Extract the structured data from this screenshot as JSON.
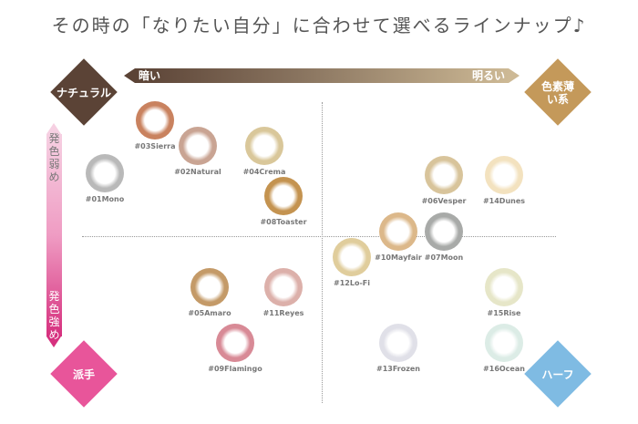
{
  "title": "その時の「なりたい自分」に合わせて選べるラインナップ♪",
  "axes": {
    "dark": "暗い",
    "bright": "明るい",
    "weak": "発色弱め",
    "strong": "発色強め"
  },
  "quadrants": {
    "top_left": {
      "label": "ナチュラル",
      "color": "#5b4336"
    },
    "top_right": {
      "label": "色素薄い系",
      "color": "#c4995a"
    },
    "bottom_left": {
      "label": "派手",
      "color": "#e8559a"
    },
    "bottom_right": {
      "label": "ハーフ",
      "color": "#7fbbe3"
    }
  },
  "lenses": [
    {
      "name": "#03Sierra",
      "rim": "#5a2e22",
      "tint": "#c9825f"
    },
    {
      "name": "#02Natural",
      "rim": "#9b7460",
      "tint": "#c9a493"
    },
    {
      "name": "#04Crema",
      "rim": "#8e8a76",
      "tint": "#d9c79a"
    },
    {
      "name": "#01Mono",
      "rim": "#6f6f6f",
      "tint": "#b9b9b9"
    },
    {
      "name": "#08Toaster",
      "rim": "#6b4a22",
      "tint": "#c49350"
    },
    {
      "name": "#06Vesper",
      "rim": "#3d3423",
      "tint": "#d8c49b"
    },
    {
      "name": "#14Dunes",
      "rim": "#e8cf9e",
      "tint": "#f3e2bf"
    },
    {
      "name": "#10Mayfair",
      "rim": "#9a7a56",
      "tint": "#dcb88a"
    },
    {
      "name": "#07Moon",
      "rim": "#3b3d3b",
      "tint": "#a8aaa8"
    },
    {
      "name": "#12Lo-Fi",
      "rim": "#a08a63",
      "tint": "#e0cd9c"
    },
    {
      "name": "#05Amaro",
      "rim": "#4a3018",
      "tint": "#c49a68"
    },
    {
      "name": "#11Reyes",
      "rim": "#a87a78",
      "tint": "#dcb0aa"
    },
    {
      "name": "#15Rise",
      "rim": "#c9c9a6",
      "tint": "#e6e6c8"
    },
    {
      "name": "#09Flamingo",
      "rim": "#8a3a44",
      "tint": "#d88a96"
    },
    {
      "name": "#13Frozen",
      "rim": "#b9b9c6",
      "tint": "#e0e0e8"
    },
    {
      "name": "#16Ocean",
      "rim": "#b5d6d0",
      "tint": "#dcece6"
    }
  ]
}
